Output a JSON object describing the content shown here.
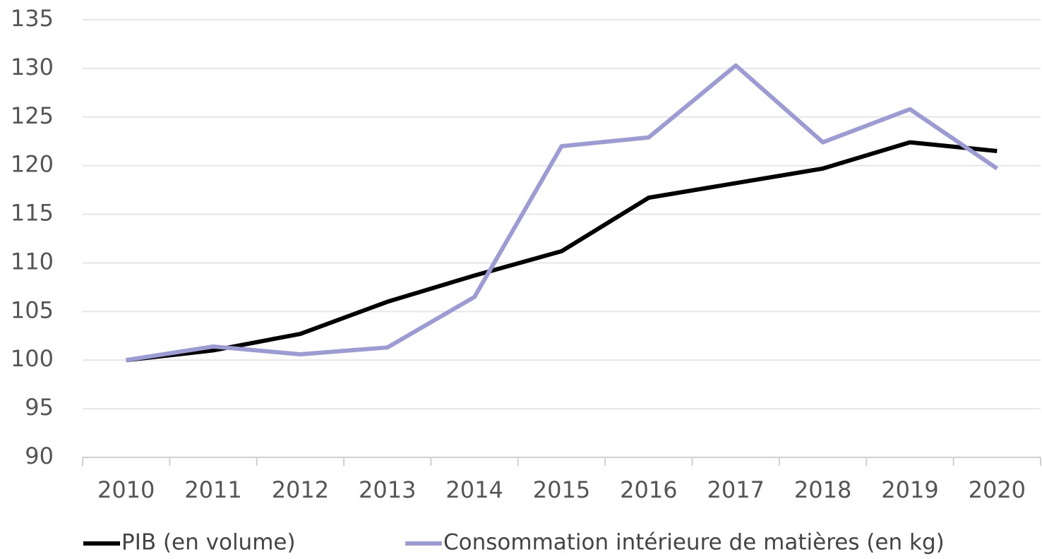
{
  "chart_data": {
    "type": "line",
    "categories": [
      "2010",
      "2011",
      "2012",
      "2013",
      "2014",
      "2015",
      "2016",
      "2017",
      "2018",
      "2019",
      "2020"
    ],
    "series": [
      {
        "name": "PIB (en volume)",
        "color": "#000000",
        "values": [
          100,
          101.0,
          102.7,
          106.0,
          108.7,
          111.2,
          116.7,
          118.2,
          119.7,
          122.4,
          121.5
        ]
      },
      {
        "name": "Consommation intérieure de matières (en kg)",
        "color": "#9b9bd6",
        "values": [
          100,
          101.4,
          100.6,
          101.3,
          106.5,
          122.0,
          122.9,
          130.3,
          122.4,
          125.8,
          119.7
        ]
      }
    ],
    "ylim": [
      90,
      135
    ],
    "yticks": [
      90,
      95,
      100,
      105,
      110,
      115,
      120,
      125,
      130,
      135
    ],
    "grid": true,
    "legend": "bottom"
  }
}
